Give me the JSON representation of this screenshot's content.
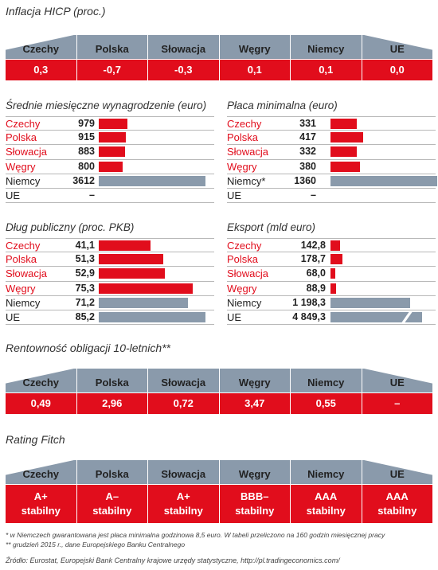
{
  "colors": {
    "accent_red": "#e10d1c",
    "neutral_grey": "#8a9aab"
  },
  "inflation": {
    "title": "Inflacja HICP (proc.)",
    "headers": [
      "Czechy",
      "Polska",
      "Słowacja",
      "Węgry",
      "Niemcy",
      "UE"
    ],
    "values": [
      "0,3",
      "-0,7",
      "-0,3",
      "0,1",
      "0,1",
      "0,0"
    ]
  },
  "bonds": {
    "title": "Rentowność obligacji 10-letnich**",
    "headers": [
      "Czechy",
      "Polska",
      "Słowacja",
      "Węgry",
      "Niemcy",
      "UE"
    ],
    "values": [
      "0,49",
      "2,96",
      "0,72",
      "3,47",
      "0,55",
      "–"
    ]
  },
  "rating": {
    "title": "Rating Fitch",
    "headers": [
      "Czechy",
      "Polska",
      "Słowacja",
      "Węgry",
      "Niemcy",
      "UE"
    ],
    "values": [
      {
        "grade": "A+",
        "outlook": "stabilny"
      },
      {
        "grade": "A–",
        "outlook": "stabilny"
      },
      {
        "grade": "A+",
        "outlook": "stabilny"
      },
      {
        "grade": "BBB–",
        "outlook": "stabilny"
      },
      {
        "grade": "AAA",
        "outlook": "stabilny"
      },
      {
        "grade": "AAA",
        "outlook": "stabilny"
      }
    ]
  },
  "chart_data": [
    {
      "type": "bar",
      "title": "Średnie miesięczne wynagrodzenie (euro)",
      "categories": [
        "Czechy",
        "Polska",
        "Słowacja",
        "Węgry",
        "Niemcy",
        "UE"
      ],
      "labels": [
        "979",
        "915",
        "883",
        "800",
        "3612",
        "–"
      ],
      "values": [
        979,
        915,
        883,
        800,
        3612,
        null
      ],
      "highlight": [
        "red",
        "red",
        "red",
        "red",
        "grey",
        "grey"
      ],
      "max": 3612
    },
    {
      "type": "bar",
      "title": "Płaca minimalna (euro)",
      "categories": [
        "Czechy",
        "Polska",
        "Słowacja",
        "Węgry",
        "Niemcy*",
        "UE"
      ],
      "labels": [
        "331",
        "417",
        "332",
        "380",
        "1360",
        "–"
      ],
      "values": [
        331,
        417,
        332,
        380,
        1360,
        null
      ],
      "highlight": [
        "red",
        "red",
        "red",
        "red",
        "grey",
        "grey"
      ],
      "max": 1360
    },
    {
      "type": "bar",
      "title": "Dług publiczny (proc. PKB)",
      "categories": [
        "Czechy",
        "Polska",
        "Słowacja",
        "Węgry",
        "Niemcy",
        "UE"
      ],
      "labels": [
        "41,1",
        "51,3",
        "52,9",
        "75,3",
        "71,2",
        "85,2"
      ],
      "values": [
        41.1,
        51.3,
        52.9,
        75.3,
        71.2,
        85.2
      ],
      "highlight": [
        "red",
        "red",
        "red",
        "red",
        "grey",
        "grey"
      ],
      "max": 85.2
    },
    {
      "type": "bar",
      "title": "Eksport (mld euro)",
      "categories": [
        "Czechy",
        "Polska",
        "Słowacja",
        "Węgry",
        "Niemcy",
        "UE"
      ],
      "labels": [
        "142,8",
        "178,7",
        "68,0",
        "88,9",
        "1 198,3",
        "4 849,3"
      ],
      "values": [
        142.8,
        178.7,
        68.0,
        88.9,
        1198.3,
        4849.3
      ],
      "highlight": [
        "red",
        "red",
        "red",
        "red",
        "grey",
        "grey"
      ],
      "max": 1198.3,
      "broken_axis_bar": 5
    }
  ],
  "footnotes": [
    "* w Niemczech gwarantowana jest płaca minimalna godzinowa 8,5 euro. W tabeli przeliczono na 160 godzin miesięcznej pracy",
    "** grudzień 2015 r., dane Europejskiego Banku Centralnego",
    "Źródło: Eurostat, Europejski Bank Centralny krajowe urzędy statystyczne, http://pl.tradingeconomics.com/"
  ]
}
